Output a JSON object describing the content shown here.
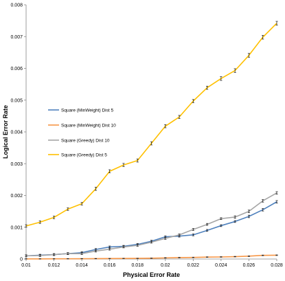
{
  "chart_data": {
    "type": "line",
    "title": "",
    "xlabel": "Physical Error Rate",
    "ylabel": "Logical Error Rate",
    "xlim": [
      0.01,
      0.028
    ],
    "ylim": [
      0,
      0.008
    ],
    "x_ticks": [
      "0.01",
      "0.012",
      "0.014",
      "0.016",
      "0.018",
      "0.02",
      "0.022",
      "0.024",
      "0.026",
      "0.028"
    ],
    "y_ticks": [
      "0",
      "0.001",
      "0.002",
      "0.003",
      "0.004",
      "0.005",
      "0.006",
      "0.007",
      "0.008"
    ],
    "grid": false,
    "error_bars": true,
    "legend_position": "left-center",
    "x": [
      0.01,
      0.011,
      0.012,
      0.013,
      0.014,
      0.015,
      0.016,
      0.017,
      0.018,
      0.019,
      0.02,
      0.021,
      0.022,
      0.023,
      0.024,
      0.025,
      0.026,
      0.027,
      0.028
    ],
    "series": [
      {
        "name": "Square (MinWeight) Dist 5",
        "color": "#4f81bd",
        "values": [
          0.0001,
          0.00012,
          0.00014,
          0.00017,
          0.0002,
          0.0003,
          0.00038,
          0.0004,
          0.00046,
          0.00056,
          0.0007,
          0.00072,
          0.00076,
          0.0009,
          0.00105,
          0.00118,
          0.00134,
          0.00155,
          0.0018
        ],
        "errors": [
          3e-05,
          3e-05,
          3e-05,
          3e-05,
          3e-05,
          3e-05,
          3e-05,
          3e-05,
          3e-05,
          3e-05,
          3e-05,
          3e-05,
          3e-05,
          3e-05,
          3e-05,
          3e-05,
          4e-05,
          4e-05,
          4e-05
        ]
      },
      {
        "name": "Square (MinWeight) Dist 10",
        "color": "#f79646",
        "values": [
          5e-06,
          5e-06,
          6e-06,
          8e-06,
          1e-05,
          1.2e-05,
          1.5e-05,
          1.8e-05,
          2e-05,
          2.5e-05,
          3.5e-05,
          4.5e-05,
          5e-05,
          6e-05,
          6.5e-05,
          7.5e-05,
          9e-05,
          0.000115,
          0.00012
        ],
        "errors": [
          5e-06,
          5e-06,
          5e-06,
          5e-06,
          5e-06,
          5e-06,
          5e-06,
          5e-06,
          5e-06,
          5e-06,
          8e-06,
          8e-06,
          8e-06,
          8e-06,
          8e-06,
          8e-06,
          1e-05,
          1e-05,
          1e-05
        ]
      },
      {
        "name": "Square (Greedy) Dist 10",
        "color": "#a5a5a5",
        "values": [
          0.0001,
          0.00011,
          0.00014,
          0.00017,
          0.00017,
          0.00025,
          0.00031,
          0.00038,
          0.00043,
          0.00053,
          0.00065,
          0.00076,
          0.00093,
          0.00109,
          0.00127,
          0.00132,
          0.0015,
          0.00183,
          0.00208
        ],
        "errors": [
          3e-05,
          3e-05,
          3e-05,
          3e-05,
          3e-05,
          3e-05,
          3e-05,
          3e-05,
          3e-05,
          3e-05,
          3e-05,
          3e-05,
          3e-05,
          3e-05,
          3e-05,
          4e-05,
          4e-05,
          4e-05,
          4e-05
        ]
      },
      {
        "name": "Square (Greedy) Dist 5",
        "color": "#ffc000",
        "values": [
          0.00104,
          0.00116,
          0.00131,
          0.00157,
          0.00174,
          0.00221,
          0.00276,
          0.00296,
          0.0031,
          0.00364,
          0.00418,
          0.00447,
          0.00497,
          0.00539,
          0.00568,
          0.00593,
          0.00641,
          0.00698,
          0.00742
        ],
        "errors": [
          4e-05,
          4e-05,
          4e-05,
          4e-05,
          4e-05,
          5e-05,
          5e-05,
          5e-05,
          5e-05,
          5e-05,
          5e-05,
          5e-05,
          5e-05,
          5e-05,
          6e-05,
          6e-05,
          6e-05,
          6e-05,
          6e-05
        ]
      }
    ]
  }
}
